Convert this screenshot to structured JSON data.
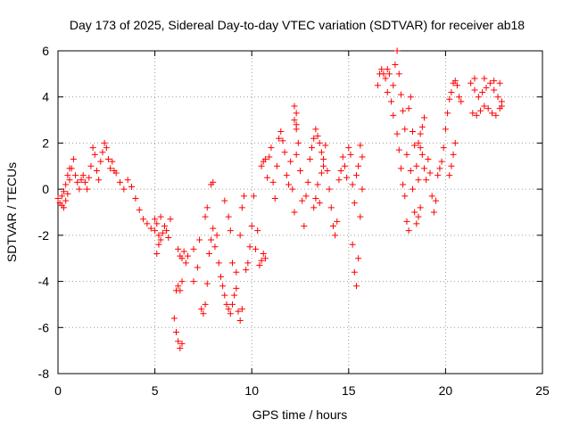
{
  "chart_data": {
    "type": "scatter",
    "title": "Day 173 of 2025, Sidereal Day-to-day VTEC variation (SDTVAR) for receiver ab18",
    "xlabel": "GPS time / hours",
    "ylabel": "SDTVAR / TECUs",
    "xlim": [
      0,
      25
    ],
    "ylim": [
      -8,
      6
    ],
    "xticks": [
      "0",
      "5",
      "10",
      "15",
      "20",
      "25"
    ],
    "yticks": [
      "-8",
      "-6",
      "-4",
      "-2",
      "0",
      "2",
      "4",
      "6"
    ],
    "grid": true,
    "marker": "plus",
    "color": "#ff0000",
    "series": [
      {
        "name": "SDTVAR",
        "points": [
          [
            0.0,
            -0.4
          ],
          [
            0.1,
            -0.6
          ],
          [
            0.2,
            -0.7
          ],
          [
            0.3,
            -0.8
          ],
          [
            0.4,
            -0.5
          ],
          [
            0.5,
            -0.2
          ],
          [
            0.6,
            0.4
          ],
          [
            0.7,
            0.9
          ],
          [
            0.8,
            1.3
          ],
          [
            0.9,
            0.6
          ],
          [
            1.0,
            0.3
          ],
          [
            1.1,
            0.0
          ],
          [
            0.2,
            -0.3
          ],
          [
            0.3,
            -0.1
          ],
          [
            0.4,
            0.2
          ],
          [
            0.5,
            0.6
          ],
          [
            0.6,
            0.9
          ],
          [
            1.2,
            0.4
          ],
          [
            1.3,
            0.6
          ],
          [
            1.4,
            0.3
          ],
          [
            1.5,
            0.0
          ],
          [
            1.6,
            0.5
          ],
          [
            1.7,
            1.0
          ],
          [
            1.8,
            1.8
          ],
          [
            1.9,
            1.5
          ],
          [
            2.0,
            0.8
          ],
          [
            2.1,
            0.4
          ],
          [
            2.2,
            1.2
          ],
          [
            2.3,
            1.6
          ],
          [
            2.4,
            2.0
          ],
          [
            2.5,
            1.8
          ],
          [
            2.6,
            1.3
          ],
          [
            2.7,
            0.9
          ],
          [
            2.8,
            1.2
          ],
          [
            2.9,
            0.8
          ],
          [
            3.0,
            0.7
          ],
          [
            3.2,
            0.3
          ],
          [
            3.4,
            0.0
          ],
          [
            3.6,
            0.4
          ],
          [
            3.8,
            0.1
          ],
          [
            4.0,
            -0.4
          ],
          [
            4.2,
            -0.9
          ],
          [
            4.4,
            -1.3
          ],
          [
            4.6,
            -1.5
          ],
          [
            4.8,
            -1.7
          ],
          [
            5.0,
            -1.8
          ],
          [
            5.1,
            -1.5
          ],
          [
            5.2,
            -2.0
          ],
          [
            5.3,
            -2.2
          ],
          [
            5.4,
            -1.9
          ],
          [
            5.5,
            -1.6
          ],
          [
            5.6,
            -1.8
          ],
          [
            5.7,
            -2.1
          ],
          [
            5.8,
            -1.3
          ],
          [
            5.1,
            -2.8
          ],
          [
            5.2,
            -2.4
          ],
          [
            5.0,
            -1.3
          ],
          [
            5.3,
            -1.2
          ],
          [
            6.0,
            -5.6
          ],
          [
            6.1,
            -6.2
          ],
          [
            6.2,
            -6.6
          ],
          [
            6.3,
            -6.9
          ],
          [
            6.4,
            -6.7
          ],
          [
            6.1,
            -4.4
          ],
          [
            6.2,
            -4.2
          ],
          [
            6.3,
            -4.4
          ],
          [
            6.4,
            -4.0
          ],
          [
            6.2,
            -2.6
          ],
          [
            6.3,
            -2.9
          ],
          [
            6.4,
            -3.0
          ],
          [
            6.5,
            -2.7
          ],
          [
            6.6,
            -3.2
          ],
          [
            6.7,
            -2.9
          ],
          [
            7.0,
            -4.0
          ],
          [
            7.2,
            -3.4
          ],
          [
            7.0,
            -2.6
          ],
          [
            7.3,
            -2.2
          ],
          [
            7.4,
            -5.2
          ],
          [
            7.5,
            -5.4
          ],
          [
            7.6,
            -5.0
          ],
          [
            7.7,
            -4.1
          ],
          [
            7.8,
            -2.8
          ],
          [
            7.9,
            -2.2
          ],
          [
            8.0,
            -1.7
          ],
          [
            7.6,
            -1.2
          ],
          [
            7.7,
            -0.8
          ],
          [
            7.9,
            0.2
          ],
          [
            8.0,
            0.3
          ],
          [
            8.1,
            -2.5
          ],
          [
            8.2,
            -2.0
          ],
          [
            8.3,
            -3.2
          ],
          [
            8.4,
            -3.8
          ],
          [
            8.5,
            -4.2
          ],
          [
            8.6,
            -4.6
          ],
          [
            8.7,
            -5.0
          ],
          [
            8.8,
            -5.2
          ],
          [
            8.9,
            -5.4
          ],
          [
            9.0,
            -5.0
          ],
          [
            9.1,
            -4.6
          ],
          [
            9.2,
            -4.3
          ],
          [
            9.3,
            -5.3
          ],
          [
            9.4,
            -5.7
          ],
          [
            9.5,
            -5.2
          ],
          [
            8.6,
            -0.5
          ],
          [
            8.8,
            -1.2
          ],
          [
            8.9,
            -1.8
          ],
          [
            9.0,
            -3.2
          ],
          [
            9.2,
            -3.6
          ],
          [
            9.4,
            -2.0
          ],
          [
            9.5,
            -0.8
          ],
          [
            9.6,
            -0.3
          ],
          [
            9.7,
            -3.5
          ],
          [
            9.8,
            -3.2
          ],
          [
            9.9,
            -2.5
          ],
          [
            10.0,
            -1.6
          ],
          [
            10.1,
            -0.3
          ],
          [
            10.2,
            -2.6
          ],
          [
            10.3,
            -1.8
          ],
          [
            10.4,
            -3.3
          ],
          [
            10.5,
            -3.1
          ],
          [
            10.6,
            -2.8
          ],
          [
            10.7,
            -3.0
          ],
          [
            10.5,
            1.0
          ],
          [
            10.6,
            1.2
          ],
          [
            10.7,
            1.3
          ],
          [
            10.8,
            0.5
          ],
          [
            10.9,
            1.4
          ],
          [
            11.0,
            1.8
          ],
          [
            11.1,
            0.3
          ],
          [
            11.2,
            -0.4
          ],
          [
            11.3,
            1.0
          ],
          [
            11.4,
            2.2
          ],
          [
            11.5,
            2.5
          ],
          [
            11.6,
            2.1
          ],
          [
            11.7,
            1.6
          ],
          [
            11.8,
            0.6
          ],
          [
            11.9,
            0.2
          ],
          [
            12.0,
            1.2
          ],
          [
            12.1,
            0.0
          ],
          [
            12.2,
            -1.0
          ],
          [
            12.3,
            1.5
          ],
          [
            12.4,
            2.0
          ],
          [
            12.5,
            0.8
          ],
          [
            12.6,
            -0.5
          ],
          [
            12.7,
            -1.6
          ],
          [
            12.8,
            -0.3
          ],
          [
            12.9,
            0.3
          ],
          [
            13.0,
            1.3
          ],
          [
            12.3,
            2.6
          ],
          [
            12.3,
            2.8
          ],
          [
            12.2,
            3.0
          ],
          [
            12.3,
            3.3
          ],
          [
            12.2,
            3.6
          ],
          [
            13.1,
            1.8
          ],
          [
            13.2,
            2.2
          ],
          [
            13.3,
            2.6
          ],
          [
            13.4,
            2.3
          ],
          [
            13.5,
            2.0
          ],
          [
            13.6,
            1.6
          ],
          [
            13.7,
            1.3
          ],
          [
            13.8,
            1.9
          ],
          [
            13.9,
            0.8
          ],
          [
            14.0,
            0.0
          ],
          [
            14.1,
            -0.8
          ],
          [
            14.2,
            -1.6
          ],
          [
            14.3,
            -2.0
          ],
          [
            14.4,
            -1.4
          ],
          [
            14.5,
            0.4
          ],
          [
            13.2,
            -0.8
          ],
          [
            13.3,
            -0.4
          ],
          [
            13.4,
            0.2
          ],
          [
            13.5,
            -0.6
          ],
          [
            13.6,
            0.7
          ],
          [
            13.7,
            1.0
          ],
          [
            14.6,
            0.8
          ],
          [
            14.7,
            1.4
          ],
          [
            14.8,
            1.0
          ],
          [
            14.9,
            0.5
          ],
          [
            15.0,
            1.8
          ],
          [
            15.1,
            1.5
          ],
          [
            15.2,
            0.2
          ],
          [
            15.3,
            -0.6
          ],
          [
            15.4,
            0.6
          ],
          [
            15.5,
            1.0
          ],
          [
            15.6,
            1.9
          ],
          [
            15.7,
            1.4
          ],
          [
            15.2,
            -2.4
          ],
          [
            15.3,
            -3.6
          ],
          [
            15.4,
            -4.2
          ],
          [
            15.5,
            -3.0
          ],
          [
            15.6,
            -1.2
          ],
          [
            15.7,
            0.0
          ],
          [
            16.5,
            4.5
          ],
          [
            16.6,
            5.0
          ],
          [
            16.7,
            5.2
          ],
          [
            16.8,
            5.0
          ],
          [
            16.9,
            4.8
          ],
          [
            17.0,
            5.2
          ],
          [
            17.1,
            5.0
          ],
          [
            17.0,
            4.2
          ],
          [
            17.2,
            3.8
          ],
          [
            17.3,
            4.5
          ],
          [
            17.4,
            5.4
          ],
          [
            17.5,
            6.0
          ],
          [
            17.6,
            5.0
          ],
          [
            17.7,
            4.1
          ],
          [
            17.8,
            3.4
          ],
          [
            17.9,
            2.6
          ],
          [
            18.0,
            1.5
          ],
          [
            17.3,
            3.2
          ],
          [
            17.5,
            2.4
          ],
          [
            17.6,
            1.7
          ],
          [
            17.7,
            0.9
          ],
          [
            17.8,
            0.2
          ],
          [
            17.9,
            -0.3
          ],
          [
            18.0,
            -1.4
          ],
          [
            18.1,
            -1.8
          ],
          [
            18.2,
            0.8
          ],
          [
            18.3,
            0.0
          ],
          [
            18.4,
            -1.0
          ],
          [
            18.5,
            -1.5
          ],
          [
            18.6,
            -1.2
          ],
          [
            18.7,
            -0.8
          ],
          [
            18.2,
            4.0
          ],
          [
            18.1,
            3.5
          ],
          [
            18.3,
            2.5
          ],
          [
            18.4,
            1.9
          ],
          [
            18.5,
            1.0
          ],
          [
            18.6,
            0.4
          ],
          [
            18.7,
            1.8
          ],
          [
            18.8,
            1.5
          ],
          [
            18.9,
            0.9
          ],
          [
            19.0,
            0.4
          ],
          [
            19.1,
            1.3
          ],
          [
            19.2,
            0.7
          ],
          [
            19.3,
            -0.3
          ],
          [
            19.4,
            -1.0
          ],
          [
            19.5,
            -0.5
          ],
          [
            18.6,
            2.0
          ],
          [
            18.7,
            2.4
          ],
          [
            18.8,
            2.7
          ],
          [
            18.9,
            3.1
          ],
          [
            19.6,
            0.6
          ],
          [
            19.7,
            0.9
          ],
          [
            19.8,
            1.2
          ],
          [
            19.9,
            1.8
          ],
          [
            20.0,
            2.6
          ],
          [
            20.1,
            3.3
          ],
          [
            20.2,
            3.9
          ],
          [
            20.3,
            4.2
          ],
          [
            20.4,
            4.6
          ],
          [
            20.5,
            4.7
          ],
          [
            20.6,
            4.5
          ],
          [
            20.7,
            4.0
          ],
          [
            20.8,
            3.8
          ],
          [
            20.5,
            2.0
          ],
          [
            20.4,
            1.5
          ],
          [
            20.3,
            1.0
          ],
          [
            20.2,
            0.6
          ],
          [
            21.3,
            4.6
          ],
          [
            21.5,
            4.3
          ],
          [
            21.7,
            4.0
          ],
          [
            21.9,
            4.2
          ],
          [
            22.1,
            4.4
          ],
          [
            22.3,
            4.6
          ],
          [
            22.5,
            4.3
          ],
          [
            22.7,
            4.0
          ],
          [
            22.9,
            3.8
          ],
          [
            21.4,
            3.3
          ],
          [
            21.6,
            3.2
          ],
          [
            21.8,
            3.4
          ],
          [
            22.0,
            3.6
          ],
          [
            22.2,
            3.5
          ],
          [
            22.4,
            3.3
          ],
          [
            22.6,
            3.2
          ],
          [
            22.8,
            3.5
          ],
          [
            22.9,
            3.6
          ],
          [
            21.5,
            4.8
          ],
          [
            22.0,
            4.8
          ],
          [
            22.5,
            4.7
          ],
          [
            22.8,
            4.6
          ]
        ]
      }
    ]
  }
}
